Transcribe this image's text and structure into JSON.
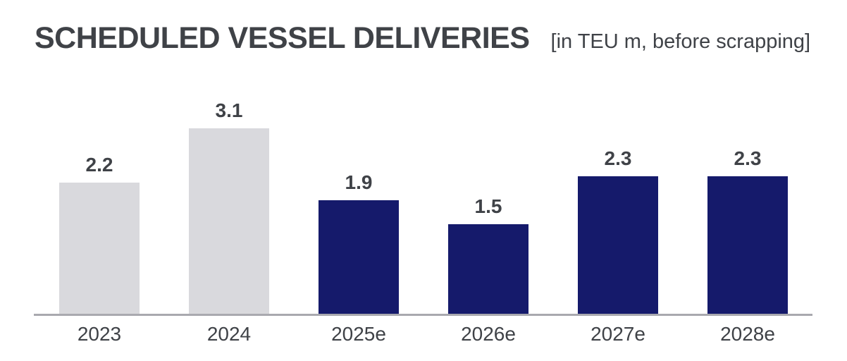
{
  "chart_data": {
    "type": "bar",
    "title": "SCHEDULED VESSEL DELIVERIES",
    "subtitle": "[in TEU m, before scrapping]",
    "categories": [
      "2023",
      "2024",
      "2025e",
      "2026e",
      "2027e",
      "2028e"
    ],
    "values": [
      2.2,
      3.1,
      1.9,
      1.5,
      2.3,
      2.3
    ],
    "value_labels": [
      "2.2",
      "3.1",
      "1.9",
      "1.5",
      "2.3",
      "2.3"
    ],
    "point_types": [
      "actual",
      "actual",
      "estimate",
      "estimate",
      "estimate",
      "estimate"
    ],
    "colors": {
      "actual": "#d9d9dd",
      "estimate": "#151a6b",
      "text": "#3f4247",
      "axis_line": "#a9a9af"
    },
    "xlabel": "",
    "ylabel": "",
    "ylim": [
      0,
      3.1
    ],
    "grid": false,
    "legend": false,
    "value_labels_shown": true
  }
}
